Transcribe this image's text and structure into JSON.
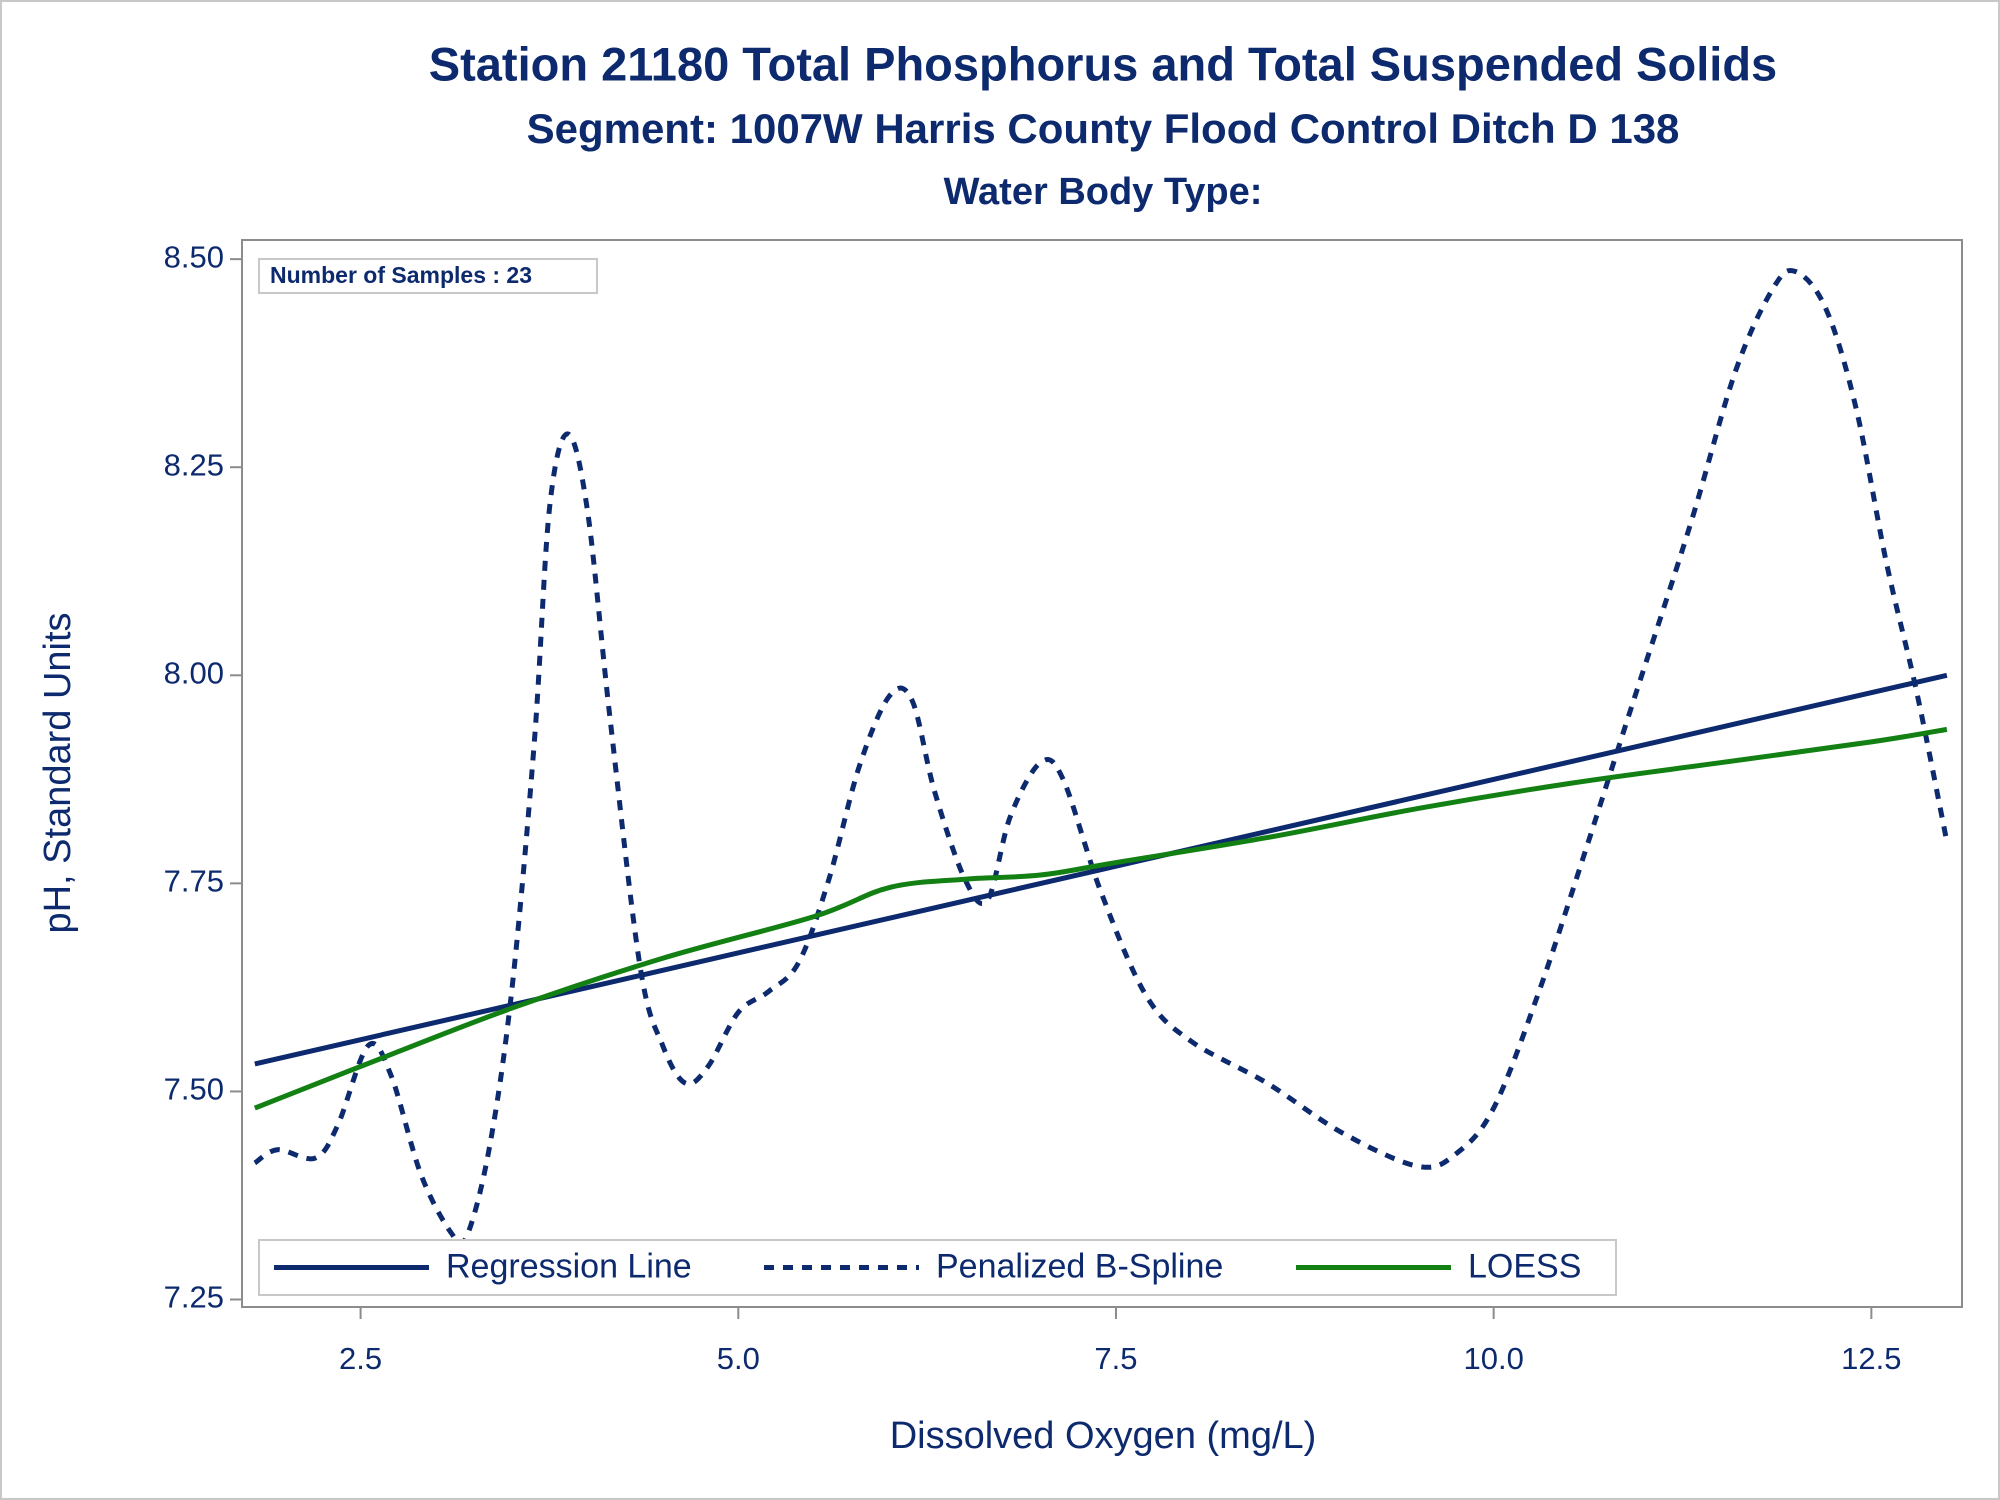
{
  "chart_data": {
    "type": "line",
    "title": "Station 21180  Total Phosphorus and Total Suspended Solids",
    "subtitle": "Segment: 1007W  Harris County Flood Control Ditch D 138",
    "subtitle2": "Water Body Type:",
    "annotation": "Number of Samples : 23",
    "xlabel": "Dissolved Oxygen (mg/L)",
    "ylabel": "pH, Standard Units",
    "xlim": [
      1.715,
      13.1
    ],
    "ylim": [
      7.241,
      8.523
    ],
    "xticks": [
      2.5,
      {
        "value": 5,
        "label": "5.0"
      },
      7.5,
      {
        "value": 10,
        "label": "10.0"
      },
      12.5
    ],
    "yticks": [
      {
        "value": 7.25,
        "label": "7.25"
      },
      {
        "value": 7.5,
        "label": "7.50"
      },
      7.75,
      {
        "value": 8,
        "label": "8.00"
      },
      8.25,
      {
        "value": 8.5,
        "label": "8.50"
      }
    ],
    "grid": false,
    "legend": "bottom-left",
    "series": [
      {
        "name": "Regression Line",
        "color": "#0d2a6e",
        "dash": false,
        "x": [
          1.8,
          13.0
        ],
        "values": [
          7.533,
          8.0
        ]
      },
      {
        "name": "Penalized B-Spline",
        "color": "#0d2a6e",
        "dash": true,
        "x": [
          1.8,
          1.95,
          2.2,
          2.35,
          2.55,
          2.7,
          2.9,
          3.1,
          3.2,
          3.35,
          3.5,
          3.65,
          3.75,
          3.87,
          4.0,
          4.15,
          4.35,
          4.5,
          4.65,
          4.8,
          5.0,
          5.2,
          5.4,
          5.6,
          5.8,
          6.0,
          6.15,
          6.3,
          6.5,
          6.65,
          6.8,
          7.0,
          7.15,
          7.4,
          7.7,
          8.0,
          8.5,
          9.0,
          9.5,
          9.75,
          10.0,
          10.3,
          10.6,
          10.9,
          11.3,
          11.6,
          11.85,
          12.0,
          12.2,
          12.4,
          12.6,
          12.8,
          13.0
        ],
        "values": [
          7.414,
          7.43,
          7.42,
          7.46,
          7.555,
          7.52,
          7.4,
          7.33,
          7.325,
          7.43,
          7.62,
          7.92,
          8.2,
          8.29,
          8.2,
          7.95,
          7.65,
          7.555,
          7.51,
          7.53,
          7.595,
          7.62,
          7.655,
          7.755,
          7.89,
          7.975,
          7.97,
          7.86,
          7.755,
          7.73,
          7.83,
          7.895,
          7.875,
          7.74,
          7.615,
          7.56,
          7.51,
          7.45,
          7.41,
          7.425,
          7.48,
          7.62,
          7.785,
          7.955,
          8.18,
          8.365,
          8.465,
          8.485,
          8.44,
          8.32,
          8.135,
          7.98,
          7.8
        ]
      },
      {
        "name": "LOESS",
        "color": "#138013",
        "dash": false,
        "x": [
          1.8,
          2.5,
          3.5,
          4.5,
          5.5,
          6.0,
          6.5,
          7.0,
          7.5,
          8.5,
          9.5,
          10.5,
          11.5,
          12.5,
          13.0
        ],
        "values": [
          7.48,
          7.53,
          7.6,
          7.66,
          7.71,
          7.745,
          7.755,
          7.76,
          7.775,
          7.805,
          7.84,
          7.87,
          7.895,
          7.92,
          7.935
        ]
      }
    ]
  }
}
